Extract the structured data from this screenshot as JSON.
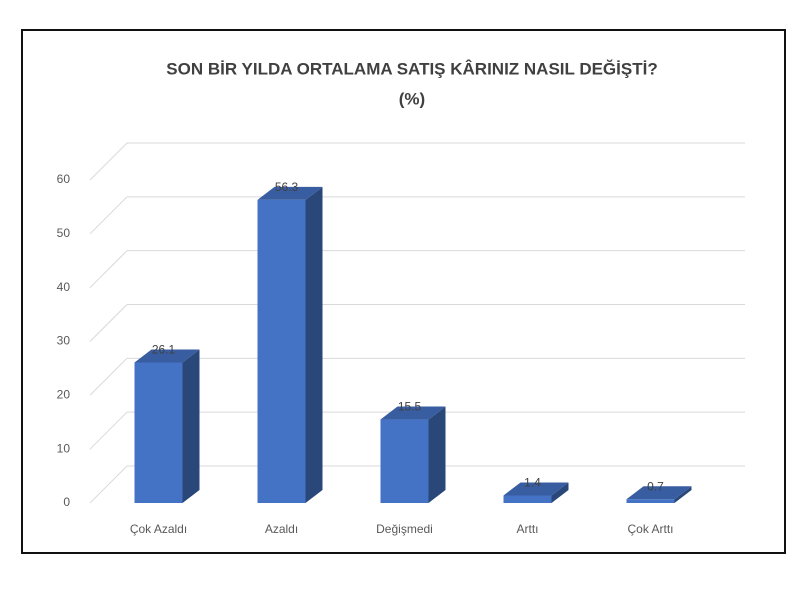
{
  "chart_data": {
    "type": "bar3d",
    "title": "SON BİR YILDA ORTALAMA SATIŞ KÂRINIZ NASIL DEĞİŞTİ?",
    "subtitle": "(%)",
    "categories": [
      "Çok Azaldı",
      "Azaldı",
      "Değişmedi",
      "Arttı",
      "Çok Arttı"
    ],
    "values": [
      26.1,
      56.3,
      15.5,
      1.4,
      0.7
    ],
    "color": "#4472c4",
    "ylim": [
      0,
      60
    ],
    "yticks": [
      0,
      10,
      20,
      30,
      40,
      50,
      60
    ],
    "grid": true
  }
}
